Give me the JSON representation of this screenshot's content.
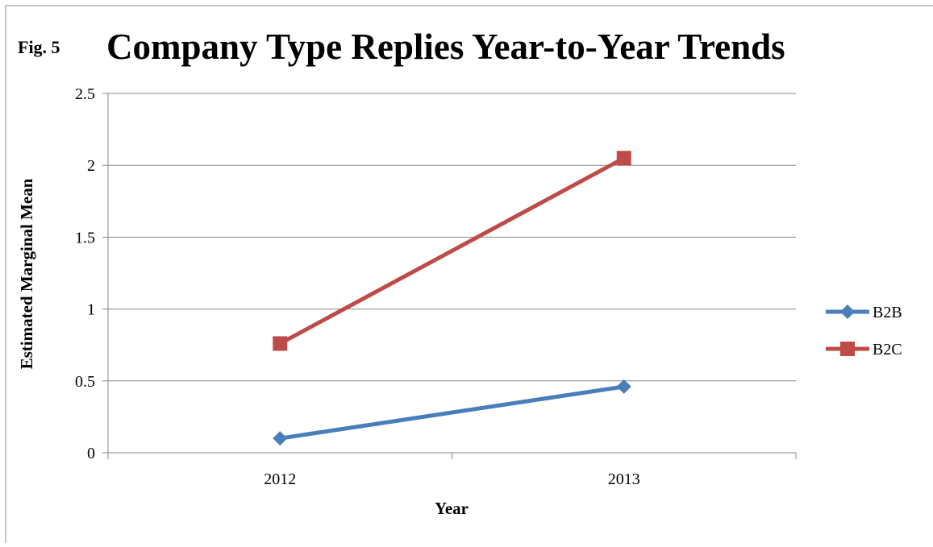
{
  "figure_label": "Fig. 5",
  "chart_data": {
    "type": "line",
    "title": "Company Type Replies Year-to-Year Trends",
    "xlabel": "Year",
    "ylabel": "Estimated Marginal Mean",
    "categories": [
      "2012",
      "2013"
    ],
    "ylim": [
      0,
      2.5
    ],
    "yticks": [
      "0",
      "0.5",
      "1",
      "1.5",
      "2",
      "2.5"
    ],
    "grid": true,
    "legend_position": "right",
    "series": [
      {
        "name": "B2B",
        "values": [
          0.1,
          0.46
        ],
        "color": "#4a7ebb",
        "marker": "diamond"
      },
      {
        "name": "B2C",
        "values": [
          0.76,
          2.05
        ],
        "color": "#be4b48",
        "marker": "square"
      }
    ]
  }
}
